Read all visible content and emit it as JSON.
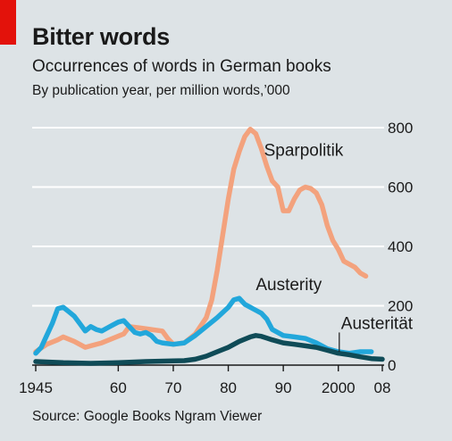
{
  "header": {
    "title": "Bitter words",
    "subtitle": "Occurrences of words in German books",
    "unit": "By publication year, per million words,’000"
  },
  "footer": {
    "source": "Source: Google Books Ngram Viewer"
  },
  "colors": {
    "background": "#dde3e6",
    "accent_red": "#e3120b",
    "gridline": "#ffffff",
    "sparpolitik": "#f3a27d",
    "austerity": "#22a7db",
    "austeritaet": "#0f4b57"
  },
  "chart_data": {
    "type": "line",
    "x_range": [
      1945,
      2008
    ],
    "ylim": [
      0,
      800
    ],
    "grid": true,
    "y_axis_side": "right",
    "x_tick_labels": [
      {
        "x": 1945,
        "label": "1945"
      },
      {
        "x": 1960,
        "label": "60"
      },
      {
        "x": 1970,
        "label": "70"
      },
      {
        "x": 1980,
        "label": "80"
      },
      {
        "x": 1990,
        "label": "90"
      },
      {
        "x": 2000,
        "label": "2000"
      },
      {
        "x": 2008,
        "label": "08"
      }
    ],
    "y_tick_labels": [
      {
        "y": 0,
        "label": "0"
      },
      {
        "y": 200,
        "label": "200"
      },
      {
        "y": 400,
        "label": "400"
      },
      {
        "y": 600,
        "label": "600"
      },
      {
        "y": 800,
        "label": "800"
      }
    ],
    "series": [
      {
        "name": "Sparpolitik",
        "color_key": "sparpolitik",
        "label_anchor": [
          1986.5,
          705
        ],
        "points": [
          [
            1945,
            45
          ],
          [
            1947,
            70
          ],
          [
            1949,
            85
          ],
          [
            1950,
            95
          ],
          [
            1952,
            80
          ],
          [
            1954,
            60
          ],
          [
            1955,
            65
          ],
          [
            1957,
            75
          ],
          [
            1959,
            90
          ],
          [
            1961,
            105
          ],
          [
            1962,
            130
          ],
          [
            1964,
            125
          ],
          [
            1966,
            120
          ],
          [
            1968,
            115
          ],
          [
            1969,
            90
          ],
          [
            1970,
            70
          ],
          [
            1972,
            75
          ],
          [
            1974,
            105
          ],
          [
            1976,
            160
          ],
          [
            1977,
            220
          ],
          [
            1978,
            320
          ],
          [
            1979,
            440
          ],
          [
            1980,
            560
          ],
          [
            1981,
            660
          ],
          [
            1982,
            720
          ],
          [
            1983,
            770
          ],
          [
            1984,
            795
          ],
          [
            1985,
            780
          ],
          [
            1986,
            730
          ],
          [
            1987,
            670
          ],
          [
            1988,
            620
          ],
          [
            1989,
            600
          ],
          [
            1990,
            520
          ],
          [
            1991,
            520
          ],
          [
            1992,
            560
          ],
          [
            1993,
            590
          ],
          [
            1994,
            600
          ],
          [
            1995,
            595
          ],
          [
            1996,
            580
          ],
          [
            1997,
            540
          ],
          [
            1998,
            470
          ],
          [
            1999,
            420
          ],
          [
            2000,
            390
          ],
          [
            2001,
            350
          ],
          [
            2002,
            340
          ],
          [
            2003,
            330
          ],
          [
            2004,
            310
          ],
          [
            2005,
            300
          ]
        ]
      },
      {
        "name": "Austerity",
        "color_key": "austerity",
        "label_anchor": [
          1985,
          252
        ],
        "points": [
          [
            1945,
            40
          ],
          [
            1946,
            60
          ],
          [
            1947,
            100
          ],
          [
            1948,
            140
          ],
          [
            1949,
            190
          ],
          [
            1950,
            195
          ],
          [
            1951,
            180
          ],
          [
            1952,
            165
          ],
          [
            1953,
            140
          ],
          [
            1954,
            115
          ],
          [
            1955,
            130
          ],
          [
            1956,
            120
          ],
          [
            1957,
            115
          ],
          [
            1958,
            125
          ],
          [
            1959,
            135
          ],
          [
            1960,
            145
          ],
          [
            1961,
            150
          ],
          [
            1962,
            130
          ],
          [
            1963,
            110
          ],
          [
            1964,
            105
          ],
          [
            1965,
            110
          ],
          [
            1966,
            100
          ],
          [
            1967,
            80
          ],
          [
            1968,
            75
          ],
          [
            1970,
            70
          ],
          [
            1972,
            75
          ],
          [
            1974,
            100
          ],
          [
            1976,
            130
          ],
          [
            1978,
            160
          ],
          [
            1980,
            195
          ],
          [
            1981,
            220
          ],
          [
            1982,
            225
          ],
          [
            1983,
            205
          ],
          [
            1984,
            195
          ],
          [
            1985,
            185
          ],
          [
            1986,
            175
          ],
          [
            1987,
            155
          ],
          [
            1988,
            120
          ],
          [
            1990,
            100
          ],
          [
            1992,
            95
          ],
          [
            1994,
            90
          ],
          [
            1996,
            75
          ],
          [
            1998,
            55
          ],
          [
            2000,
            45
          ],
          [
            2002,
            40
          ],
          [
            2004,
            45
          ],
          [
            2006,
            45
          ]
        ]
      },
      {
        "name": "Austerität",
        "color_key": "austeritaet",
        "label_anchor": [
          2000.5,
          122
        ],
        "points": [
          [
            1945,
            12
          ],
          [
            1948,
            10
          ],
          [
            1950,
            8
          ],
          [
            1955,
            6
          ],
          [
            1960,
            8
          ],
          [
            1965,
            12
          ],
          [
            1970,
            14
          ],
          [
            1972,
            15
          ],
          [
            1974,
            20
          ],
          [
            1976,
            30
          ],
          [
            1978,
            45
          ],
          [
            1980,
            60
          ],
          [
            1982,
            80
          ],
          [
            1984,
            95
          ],
          [
            1985,
            100
          ],
          [
            1986,
            97
          ],
          [
            1988,
            85
          ],
          [
            1990,
            75
          ],
          [
            1992,
            70
          ],
          [
            1994,
            65
          ],
          [
            1996,
            60
          ],
          [
            1998,
            50
          ],
          [
            2000,
            40
          ],
          [
            2002,
            35
          ],
          [
            2004,
            28
          ],
          [
            2006,
            22
          ],
          [
            2008,
            20
          ]
        ]
      }
    ]
  }
}
